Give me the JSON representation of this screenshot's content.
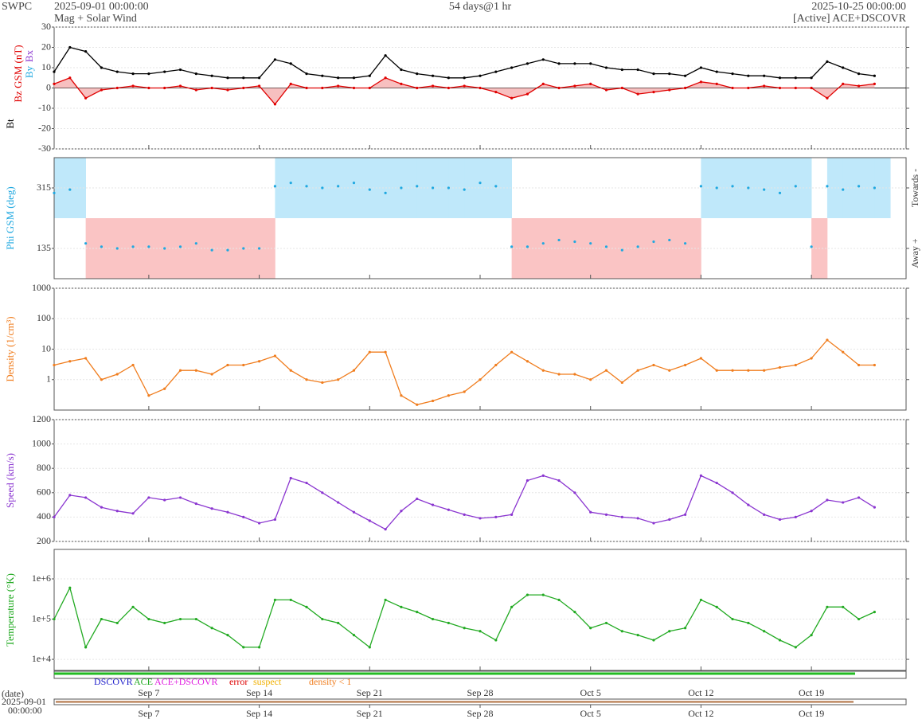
{
  "header": {
    "org": "SWPC",
    "start": "2025-09-01 00:00:00",
    "product": "Mag + Solar Wind",
    "span": "54 days@1 hr",
    "end": "2025-10-25 00:00:00",
    "source": "[Active] ACE+DSCOVR"
  },
  "status_legend": [
    "DSCOVR",
    "ACE",
    "ACE+DSCOVR",
    "error",
    "suspect",
    "density < 1"
  ],
  "footer": {
    "date_label": "(date)",
    "start_date": "2025-09-01",
    "start_time": "00:00:00"
  },
  "xlim": [
    "2025-09-01",
    "2025-10-25"
  ],
  "xticks": [
    {
      "value": "2025-09-07",
      "label": "Sep 7"
    },
    {
      "value": "2025-09-14",
      "label": "Sep 14"
    },
    {
      "value": "2025-09-21",
      "label": "Sep 21"
    },
    {
      "value": "2025-09-28",
      "label": "Sep 28"
    },
    {
      "value": "2025-10-05",
      "label": "Oct 5"
    },
    {
      "value": "2025-10-12",
      "label": "Oct 12"
    },
    {
      "value": "2025-10-19",
      "label": "Oct 19"
    }
  ],
  "x": [
    "2025-09-01",
    "2025-09-02",
    "2025-09-03",
    "2025-09-04",
    "2025-09-05",
    "2025-09-06",
    "2025-09-07",
    "2025-09-08",
    "2025-09-09",
    "2025-09-10",
    "2025-09-11",
    "2025-09-12",
    "2025-09-13",
    "2025-09-14",
    "2025-09-15",
    "2025-09-16",
    "2025-09-17",
    "2025-09-18",
    "2025-09-19",
    "2025-09-20",
    "2025-09-21",
    "2025-09-22",
    "2025-09-23",
    "2025-09-24",
    "2025-09-25",
    "2025-09-26",
    "2025-09-27",
    "2025-09-28",
    "2025-09-29",
    "2025-09-30",
    "2025-10-01",
    "2025-10-02",
    "2025-10-03",
    "2025-10-04",
    "2025-10-05",
    "2025-10-06",
    "2025-10-07",
    "2025-10-08",
    "2025-10-09",
    "2025-10-10",
    "2025-10-11",
    "2025-10-12",
    "2025-10-13",
    "2025-10-14",
    "2025-10-15",
    "2025-10-16",
    "2025-10-17",
    "2025-10-18",
    "2025-10-19",
    "2025-10-20",
    "2025-10-21",
    "2025-10-22",
    "2025-10-23"
  ],
  "chart_data": [
    {
      "type": "line",
      "extra_labels": [
        {
          "text": "Bx",
          "color": "#8a35d0"
        },
        {
          "text": "By",
          "color": "#1fa8e0"
        }
      ],
      "ylim": [
        -30,
        30
      ],
      "yticks": [
        -30,
        -20,
        -10,
        0,
        10,
        20,
        30
      ],
      "zero_line": true,
      "series": [
        {
          "name": "Bt",
          "color": "#000000",
          "values": [
            8,
            20,
            18,
            10,
            8,
            7,
            7,
            8,
            9,
            7,
            6,
            5,
            5,
            5,
            14,
            12,
            7,
            6,
            5,
            5,
            6,
            16,
            9,
            7,
            6,
            5,
            5,
            6,
            8,
            10,
            12,
            14,
            12,
            12,
            12,
            10,
            9,
            9,
            7,
            7,
            6,
            10,
            8,
            7,
            6,
            6,
            5,
            5,
            5,
            13,
            10,
            7,
            6
          ]
        },
        {
          "name": "Bz GSM (nT)",
          "color": "#e00000",
          "fill": "#f5b0b0",
          "values": [
            2,
            5,
            -5,
            -1,
            0,
            1,
            0,
            0,
            1,
            -1,
            0,
            -1,
            0,
            1,
            -8,
            2,
            0,
            0,
            1,
            0,
            0,
            5,
            2,
            0,
            1,
            0,
            1,
            0,
            -2,
            -5,
            -3,
            2,
            0,
            1,
            2,
            -1,
            0,
            -3,
            -2,
            -1,
            0,
            3,
            2,
            0,
            0,
            1,
            0,
            0,
            0,
            -5,
            2,
            1,
            2
          ]
        }
      ]
    },
    {
      "type": "scatter",
      "ylim": [
        45,
        405
      ],
      "yticks": [
        135,
        315
      ],
      "right_labels": [
        "Towards -",
        "Away +"
      ],
      "shade_colors": [
        "#bfe8fa",
        "#fac4c4"
      ],
      "series": [
        {
          "name": "Phi GSM (deg)",
          "color": "#1fa8e0",
          "values": [
            300,
            310,
            150,
            140,
            135,
            140,
            140,
            135,
            140,
            150,
            130,
            130,
            135,
            135,
            320,
            330,
            320,
            315,
            320,
            330,
            310,
            300,
            315,
            320,
            315,
            315,
            310,
            330,
            320,
            140,
            140,
            150,
            160,
            155,
            150,
            140,
            130,
            140,
            155,
            160,
            150,
            320,
            315,
            320,
            315,
            310,
            300,
            320,
            140,
            320,
            310,
            320,
            315
          ]
        }
      ]
    },
    {
      "type": "line",
      "log": true,
      "ylim": [
        0.1,
        1000
      ],
      "yticks": [
        1,
        10,
        100,
        1000
      ],
      "series": [
        {
          "name": "Density (1/cm³)",
          "color": "#f07d1e",
          "values": [
            3,
            4,
            5,
            1,
            1.5,
            3,
            0.3,
            0.5,
            2,
            2,
            1.5,
            3,
            3,
            4,
            6,
            2,
            1,
            0.8,
            1,
            2,
            8,
            8,
            0.3,
            0.15,
            0.2,
            0.3,
            0.4,
            1,
            3,
            8,
            4,
            2,
            1.5,
            1.5,
            1,
            2,
            0.8,
            2,
            3,
            2,
            3,
            5,
            2,
            2,
            2,
            2,
            2.5,
            3,
            5,
            20,
            8,
            3,
            3
          ]
        }
      ]
    },
    {
      "type": "line",
      "ylim": [
        200,
        1200
      ],
      "yticks": [
        200,
        400,
        600,
        800,
        1000,
        1200
      ],
      "series": [
        {
          "name": "Speed (km/s)",
          "color": "#8a35d0",
          "values": [
            400,
            580,
            560,
            480,
            450,
            430,
            560,
            540,
            560,
            510,
            470,
            440,
            400,
            350,
            380,
            720,
            680,
            600,
            520,
            440,
            370,
            300,
            450,
            550,
            500,
            460,
            420,
            390,
            400,
            420,
            700,
            740,
            700,
            600,
            440,
            420,
            400,
            390,
            350,
            380,
            420,
            740,
            680,
            600,
            500,
            420,
            380,
            400,
            450,
            540,
            520,
            560,
            480
          ]
        }
      ]
    },
    {
      "type": "line",
      "log": true,
      "ylim": [
        5300,
        5400000
      ],
      "yticks": [
        {
          "value": 10000,
          "label": "1e+4"
        },
        {
          "value": 100000,
          "label": "1e+5"
        },
        {
          "value": 1000000,
          "label": "1e+6"
        }
      ],
      "series": [
        {
          "name": "Temperature (°K)",
          "color": "#22aa22",
          "values": [
            100000,
            600000,
            20000,
            100000,
            80000,
            200000,
            100000,
            80000,
            100000,
            100000,
            60000,
            40000,
            20000,
            20000,
            300000,
            300000,
            200000,
            100000,
            80000,
            40000,
            20000,
            300000,
            200000,
            150000,
            100000,
            80000,
            60000,
            50000,
            30000,
            200000,
            400000,
            400000,
            300000,
            150000,
            60000,
            80000,
            50000,
            40000,
            30000,
            50000,
            60000,
            300000,
            200000,
            100000,
            80000,
            50000,
            30000,
            20000,
            40000,
            200000,
            200000,
            100000,
            150000
          ]
        }
      ]
    }
  ]
}
